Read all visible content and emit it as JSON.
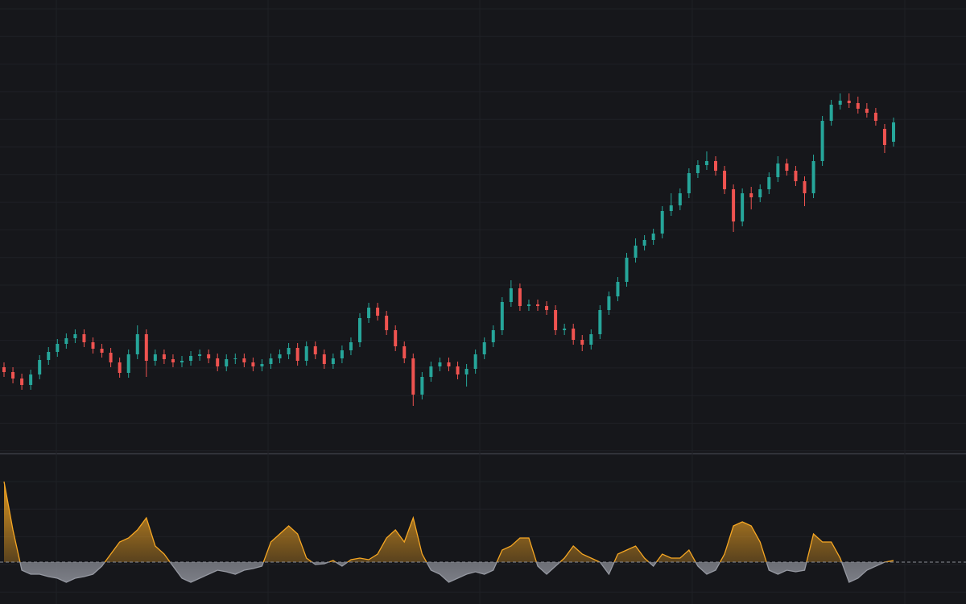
{
  "chart_data": [
    {
      "type": "candlestick",
      "up_color": "#26a69a",
      "down_color": "#ef5350",
      "grid": true,
      "ylim": [
        60,
        200
      ],
      "open": [
        86,
        84.5,
        82.5,
        80.5,
        83.75,
        88.25,
        90.75,
        93.25,
        95,
        96.25,
        93.75,
        91.75,
        90.5,
        87.5,
        84.25,
        90,
        96.25,
        88,
        90,
        88.5,
        87.5,
        88,
        89.5,
        90,
        88.75,
        86.25,
        88.5,
        88.75,
        87.5,
        86.25,
        87,
        88.75,
        90,
        92,
        88,
        92.5,
        90,
        87,
        88.75,
        91.25,
        93.75,
        101.25,
        104.5,
        102,
        97.5,
        92.5,
        88.75,
        77.5,
        83,
        86.25,
        87.5,
        86.25,
        83.75,
        85.5,
        90,
        93.75,
        97.5,
        106.25,
        110.5,
        105,
        105.5,
        105,
        103.75,
        97.5,
        98,
        94.5,
        93,
        96.25,
        103.75,
        108,
        112.5,
        120,
        123.75,
        125.5,
        127.5,
        134.5,
        136.25,
        140,
        146.25,
        148.75,
        150,
        147,
        141.25,
        131.25,
        140,
        138.75,
        141.25,
        145,
        149.25,
        147,
        143.75,
        140,
        150,
        162.5,
        167.5,
        168.75,
        168,
        166.25,
        165,
        160,
        156
      ],
      "high": [
        87.5,
        86,
        84,
        85.25,
        89.75,
        92.25,
        94.75,
        96.5,
        97.75,
        97.75,
        95.25,
        93.25,
        92,
        89,
        91.5,
        99,
        97.75,
        91.5,
        91.5,
        90,
        89.5,
        91,
        91.5,
        91.5,
        90.25,
        90,
        90.25,
        90.25,
        89,
        88.5,
        90.25,
        91.5,
        93.5,
        93.5,
        94,
        94,
        91.5,
        90.25,
        92.75,
        95.25,
        102.75,
        106,
        106,
        103.5,
        99,
        94,
        90.25,
        84.5,
        87.75,
        89,
        89,
        87.75,
        87,
        91.5,
        95.25,
        99,
        107.75,
        113,
        112,
        107,
        107,
        106.5,
        105.25,
        99.5,
        99.5,
        96,
        97.75,
        105.25,
        109.5,
        114,
        121.5,
        126,
        127,
        129,
        136,
        140,
        141.5,
        147.75,
        150.25,
        153,
        151.5,
        148.5,
        142.75,
        141.5,
        142,
        142.75,
        146.5,
        151.5,
        150.75,
        148.5,
        145.25,
        152,
        164,
        169,
        171,
        171,
        170,
        168,
        166.5,
        161.5,
        163.5
      ],
      "low": [
        83,
        81,
        79,
        79,
        82.25,
        86.75,
        89.25,
        91.75,
        93.5,
        92.25,
        90.25,
        89,
        86,
        82.75,
        82.75,
        88.5,
        83,
        86.5,
        87,
        86,
        86,
        86.5,
        88,
        87.25,
        84.75,
        84.75,
        87,
        86,
        84.75,
        84.75,
        85.5,
        87.25,
        88.5,
        86.5,
        86.5,
        88.5,
        85.5,
        85.5,
        87.25,
        89.75,
        92.25,
        99.75,
        100.5,
        96,
        91,
        87.25,
        74,
        76,
        81.5,
        84.75,
        84.75,
        82.25,
        80,
        84,
        88.5,
        92.25,
        96,
        104.75,
        103.5,
        103.5,
        103.5,
        102.25,
        96,
        96,
        93,
        91,
        91.5,
        94.75,
        102.25,
        106.5,
        111,
        118.5,
        122.25,
        124,
        126,
        133,
        134.75,
        138.5,
        144.75,
        147.25,
        145.5,
        139.75,
        128,
        129.75,
        135,
        137.25,
        139.75,
        143.5,
        145.5,
        142.25,
        136,
        138.5,
        148.5,
        161,
        166,
        166.5,
        164.75,
        163.5,
        161,
        152.5,
        154.5
      ],
      "close": [
        84.5,
        82.5,
        80.5,
        83.75,
        88.25,
        90.75,
        93.25,
        95,
        96.25,
        93.75,
        91.75,
        90.5,
        87.5,
        84.25,
        90,
        96.25,
        88,
        90,
        88.5,
        87.5,
        88,
        89.5,
        90,
        88.75,
        86.25,
        88.5,
        88.75,
        87.5,
        86.25,
        87,
        88.75,
        90,
        92,
        88,
        92.5,
        90,
        87,
        88.75,
        91.25,
        93.75,
        101.25,
        104.5,
        102,
        97.5,
        92.5,
        88.75,
        77.5,
        83,
        86.25,
        87.5,
        86.25,
        83.75,
        85.5,
        90,
        93.75,
        97.5,
        106.25,
        110.5,
        105,
        105.5,
        105,
        103.75,
        97.5,
        98,
        94.5,
        93,
        96.25,
        103.75,
        108,
        112.5,
        120,
        123.75,
        125.5,
        127.5,
        134.5,
        136.25,
        140,
        146.25,
        148.75,
        150,
        147,
        141.25,
        131.25,
        140,
        138.75,
        141.25,
        145,
        149.25,
        147,
        143.75,
        140,
        150,
        162.5,
        167.5,
        168.75,
        168,
        166.25,
        165,
        162.5,
        155,
        162
      ]
    },
    {
      "type": "oscillator",
      "positive_color": "#f5a623",
      "negative_color": "#9598a1",
      "hline": 0,
      "ylim": [
        -52,
        133
      ],
      "values": [
        100,
        40,
        -10,
        -15,
        -15,
        -18,
        -20,
        -25,
        -20,
        -18,
        -15,
        -5,
        10,
        25,
        30,
        40,
        55,
        20,
        10,
        -5,
        -20,
        -25,
        -20,
        -15,
        -10,
        -12,
        -15,
        -10,
        -8,
        -5,
        25,
        35,
        45,
        35,
        5,
        -3,
        -2,
        2,
        -5,
        3,
        5,
        3,
        10,
        30,
        40,
        25,
        55,
        10,
        -10,
        -15,
        -25,
        -20,
        -15,
        -12,
        -15,
        -10,
        15,
        20,
        30,
        30,
        -5,
        -15,
        -5,
        5,
        20,
        10,
        5,
        0,
        -15,
        10,
        15,
        20,
        5,
        -5,
        10,
        5,
        5,
        15,
        -5,
        -15,
        -10,
        10,
        45,
        50,
        45,
        25,
        -10,
        -15,
        -10,
        -12,
        -10,
        35,
        25,
        25,
        5,
        -25,
        -20,
        -10,
        -5,
        0,
        2
      ]
    }
  ]
}
